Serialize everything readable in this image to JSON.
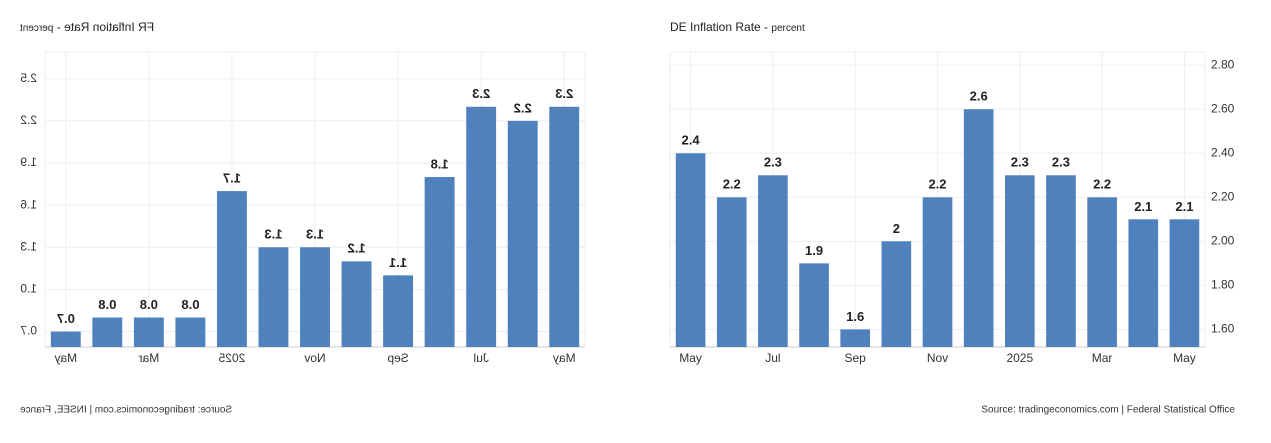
{
  "chart_data": [
    {
      "type": "bar",
      "title": "FR Inflation Rate",
      "subtitle": "percent",
      "mirrored": true,
      "categories": [
        "May",
        null,
        "Jul",
        null,
        "Sep",
        null,
        "Nov",
        null,
        "2025",
        null,
        "Mar",
        null,
        "May"
      ],
      "values": [
        2.3,
        2.2,
        2.3,
        1.8,
        1.1,
        1.2,
        1.3,
        1.3,
        1.7,
        0.8,
        0.8,
        0.8,
        0.7
      ],
      "color": "#4f81bd",
      "ylim": [
        0.59,
        2.69
      ],
      "yticks": [
        0.7,
        {
          "value": 1,
          "label": "1.0"
        },
        1.3,
        1.6,
        1.9,
        2.2,
        2.5
      ],
      "grid": true,
      "source": "Source: tradingeconomics.com | INSEE, France"
    },
    {
      "type": "bar",
      "title": "DE Inflation Rate",
      "subtitle": "percent",
      "mirrored": false,
      "categories": [
        "May",
        null,
        "Jul",
        null,
        "Sep",
        null,
        "Nov",
        null,
        "2025",
        null,
        "Mar",
        null,
        "May"
      ],
      "values": [
        2.4,
        2.2,
        2.3,
        1.9,
        1.6,
        2,
        2.2,
        2.6,
        2.3,
        2.3,
        2.2,
        2.1,
        2.1
      ],
      "color": "#4f81bd",
      "ylim": [
        1.52,
        2.86
      ],
      "yticks": [
        {
          "value": 1.6,
          "label": "1.60"
        },
        {
          "value": 1.8,
          "label": "1.80"
        },
        {
          "value": 2,
          "label": "2.00"
        },
        {
          "value": 2.2,
          "label": "2.20"
        },
        {
          "value": 2.4,
          "label": "2.40"
        },
        {
          "value": 2.6,
          "label": "2.60"
        },
        {
          "value": 2.8,
          "label": "2.80"
        }
      ],
      "grid": true,
      "source": "Source: tradingeconomics.com | Federal Statistical Office"
    }
  ]
}
